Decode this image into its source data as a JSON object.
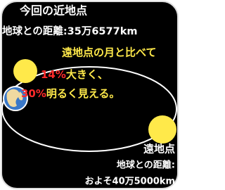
{
  "near": {
    "title": "今回の近地点",
    "distance": "地球との距離:35万6577km"
  },
  "message": {
    "line1": "遠地点の月と比べて",
    "line2": {
      "highlight": "14%",
      "text": "大きく、"
    },
    "line3": {
      "highlight": "30%",
      "text": "明るく見える。"
    }
  },
  "far": {
    "title": "遠地点",
    "distance_label": "地球との距離:",
    "distance": "およそ40万5000km"
  }
}
